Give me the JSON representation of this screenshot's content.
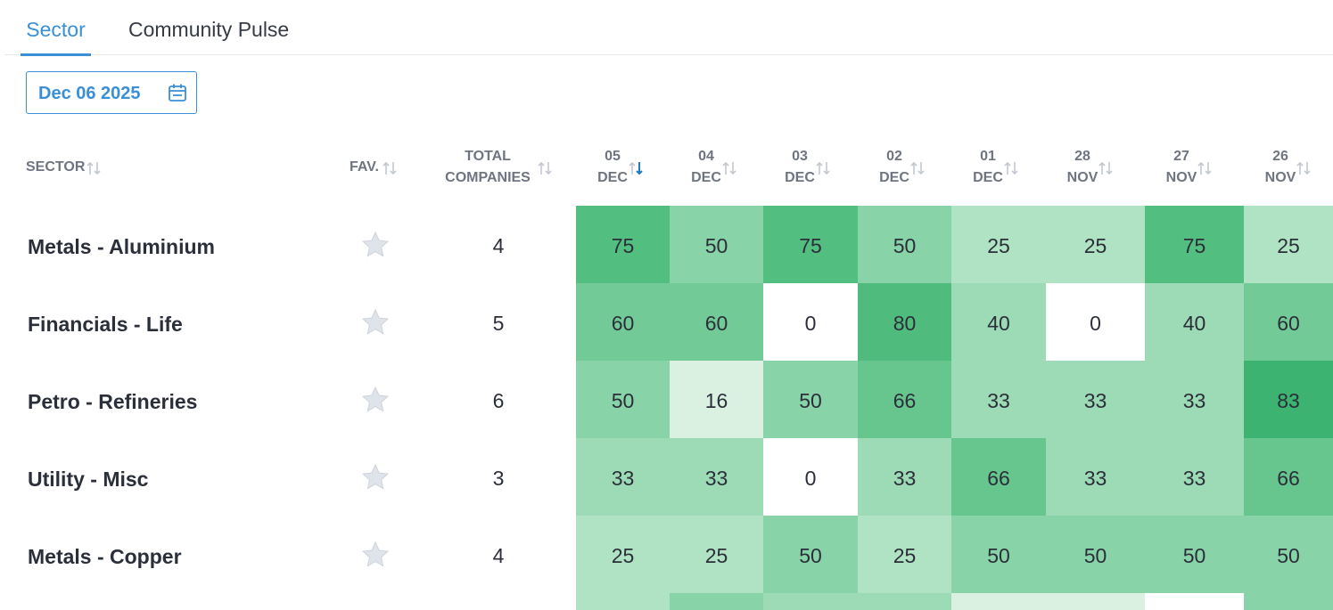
{
  "tabs": [
    {
      "label": "Sector",
      "active": true
    },
    {
      "label": "Community Pulse",
      "active": false
    }
  ],
  "date_picker": {
    "value": "Dec 06 2025",
    "icon": "calendar-icon"
  },
  "headers": {
    "sector": "SECTOR",
    "fav": "FAV.",
    "total_line1": "TOTAL",
    "total_line2": "COMPANIES",
    "dates": [
      {
        "day": "05",
        "month": "DEC",
        "sorted": true
      },
      {
        "day": "04",
        "month": "DEC"
      },
      {
        "day": "03",
        "month": "DEC"
      },
      {
        "day": "02",
        "month": "DEC"
      },
      {
        "day": "01",
        "month": "DEC"
      },
      {
        "day": "28",
        "month": "NOV"
      },
      {
        "day": "27",
        "month": "NOV"
      },
      {
        "day": "26",
        "month": "NOV"
      }
    ]
  },
  "rows": [
    {
      "sector": "Metals - Aluminium",
      "total": "4",
      "values": [
        "75",
        "50",
        "75",
        "50",
        "25",
        "25",
        "75",
        "25"
      ]
    },
    {
      "sector": "Financials - Life",
      "total": "5",
      "values": [
        "60",
        "60",
        "0",
        "80",
        "40",
        "0",
        "40",
        "60"
      ]
    },
    {
      "sector": "Petro - Refineries",
      "total": "6",
      "values": [
        "50",
        "16",
        "50",
        "66",
        "33",
        "33",
        "33",
        "83"
      ]
    },
    {
      "sector": "Utility - Misc",
      "total": "3",
      "values": [
        "33",
        "33",
        "0",
        "33",
        "66",
        "33",
        "33",
        "66"
      ]
    },
    {
      "sector": "Metals - Copper",
      "total": "4",
      "values": [
        "25",
        "25",
        "50",
        "25",
        "50",
        "50",
        "50",
        "50"
      ]
    }
  ],
  "colors": {
    "accent": "#3a8fd6",
    "heat_0": "#ffffff",
    "heat_16": "#daf0e1",
    "heat_25": "#b0e3c3",
    "heat_33": "#9cdbb5",
    "heat_40": "#9cdbb5",
    "heat_50": "#88d3a7",
    "heat_60": "#72cb97",
    "heat_66": "#66c68e",
    "heat_75": "#52be80",
    "heat_80": "#4fbc7e",
    "heat_83": "#3db371"
  }
}
